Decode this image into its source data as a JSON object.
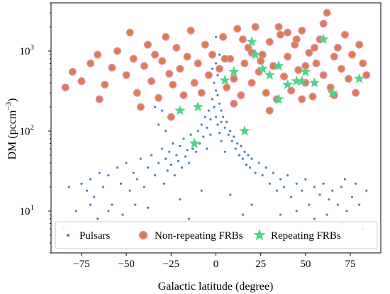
{
  "chart_data": {
    "type": "scatter",
    "xlabel": "Galactic latitude (degree)",
    "ylabel": "DM (pccm",
    "ylabel_exponent": "−3",
    "ylabel_close": ")",
    "xlim": [
      -92,
      92
    ],
    "ylim": [
      3,
      4000
    ],
    "yscale": "log",
    "x_ticks": [
      -75,
      -50,
      -25,
      0,
      25,
      50,
      75
    ],
    "x_tick_labels": [
      "−75",
      "−50",
      "−25",
      "0",
      "25",
      "50",
      "75"
    ],
    "y_ticks": [
      10,
      100,
      1000
    ],
    "y_tick_labels": [
      {
        "base": "10",
        "exp": "1"
      },
      {
        "base": "10",
        "exp": "2"
      },
      {
        "base": "10",
        "exp": "3"
      }
    ],
    "legend_position": "bottom",
    "series": [
      {
        "name": "Pulsars",
        "marker": "dot",
        "color": "#4a7fb5",
        "points": [
          [
            -75,
            22
          ],
          [
            -72,
            18
          ],
          [
            -70,
            25
          ],
          [
            -68,
            15
          ],
          [
            -65,
            30
          ],
          [
            -63,
            20
          ],
          [
            -60,
            28
          ],
          [
            -58,
            12
          ],
          [
            -55,
            35
          ],
          [
            -53,
            22
          ],
          [
            -50,
            40
          ],
          [
            -48,
            18
          ],
          [
            -46,
            30
          ],
          [
            -44,
            25
          ],
          [
            -42,
            45
          ],
          [
            -40,
            20
          ],
          [
            -38,
            35
          ],
          [
            -36,
            50
          ],
          [
            -34,
            28
          ],
          [
            -32,
            40
          ],
          [
            -30,
            60
          ],
          [
            -29,
            22
          ],
          [
            -28,
            45
          ],
          [
            -27,
            32
          ],
          [
            -26,
            55
          ],
          [
            -25,
            38
          ],
          [
            -24,
            70
          ],
          [
            -23,
            28
          ],
          [
            -22,
            50
          ],
          [
            -21,
            42
          ],
          [
            -20,
            65
          ],
          [
            -19,
            35
          ],
          [
            -18,
            80
          ],
          [
            -17,
            48
          ],
          [
            -16,
            58
          ],
          [
            -15,
            40
          ],
          [
            -14,
            90
          ],
          [
            -13,
            60
          ],
          [
            -12,
            75
          ],
          [
            -11,
            55
          ],
          [
            -10,
            100
          ],
          [
            -9,
            70
          ],
          [
            -8,
            120
          ],
          [
            -7,
            85
          ],
          [
            -6,
            150
          ],
          [
            -5,
            110
          ],
          [
            -4,
            180
          ],
          [
            -3,
            140
          ],
          [
            -2,
            250
          ],
          [
            -1,
            200
          ],
          [
            0,
            320
          ],
          [
            0,
            150
          ],
          [
            1,
            280
          ],
          [
            1,
            120
          ],
          [
            2,
            220
          ],
          [
            2,
            95
          ],
          [
            3,
            180
          ],
          [
            3,
            130
          ],
          [
            4,
            150
          ],
          [
            5,
            110
          ],
          [
            6,
            130
          ],
          [
            7,
            90
          ],
          [
            8,
            100
          ],
          [
            9,
            75
          ],
          [
            10,
            85
          ],
          [
            11,
            60
          ],
          [
            12,
            70
          ],
          [
            13,
            50
          ],
          [
            14,
            65
          ],
          [
            15,
            45
          ],
          [
            16,
            55
          ],
          [
            17,
            38
          ],
          [
            18,
            50
          ],
          [
            19,
            35
          ],
          [
            20,
            45
          ],
          [
            22,
            30
          ],
          [
            24,
            40
          ],
          [
            26,
            28
          ],
          [
            28,
            35
          ],
          [
            30,
            22
          ],
          [
            32,
            30
          ],
          [
            34,
            18
          ],
          [
            36,
            25
          ],
          [
            38,
            20
          ],
          [
            40,
            28
          ],
          [
            42,
            15
          ],
          [
            45,
            22
          ],
          [
            48,
            18
          ],
          [
            50,
            25
          ],
          [
            52,
            12
          ],
          [
            55,
            20
          ],
          [
            58,
            16
          ],
          [
            60,
            22
          ],
          [
            63,
            14
          ],
          [
            65,
            18
          ],
          [
            68,
            12
          ],
          [
            70,
            20
          ],
          [
            73,
            10
          ],
          [
            76,
            15
          ],
          [
            80,
            12
          ],
          [
            84,
            18
          ],
          [
            -85,
            6
          ],
          [
            -78,
            10
          ],
          [
            -66,
            8
          ],
          [
            -52,
            9
          ],
          [
            -38,
            11
          ],
          [
            -33,
            5
          ],
          [
            -20,
            14
          ],
          [
            -8,
            18
          ],
          [
            8,
            16
          ],
          [
            20,
            12
          ],
          [
            36,
            9
          ],
          [
            55,
            8
          ],
          [
            70,
            7
          ],
          [
            82,
            6
          ],
          [
            -5,
            60
          ],
          [
            5,
            55
          ],
          [
            -3,
            90
          ],
          [
            3,
            75
          ],
          [
            -1,
            400
          ],
          [
            1,
            500
          ],
          [
            0,
            700
          ],
          [
            0,
            1500
          ],
          [
            2,
            900
          ],
          [
            -2,
            600
          ],
          [
            -34,
            200
          ],
          [
            -30,
            180
          ],
          [
            -32,
            120
          ],
          [
            -28,
            100
          ],
          [
            -60,
            10
          ],
          [
            -45,
            12
          ],
          [
            -15,
            8
          ],
          [
            15,
            9
          ],
          [
            45,
            10
          ],
          [
            62,
            9
          ],
          [
            -70,
            12
          ],
          [
            72,
            25
          ],
          [
            78,
            22
          ],
          [
            -82,
            20
          ]
        ]
      },
      {
        "name": "Non-repeating FRBs",
        "marker": "circle",
        "color": "#e07b4a",
        "points": [
          [
            -80,
            550
          ],
          [
            -75,
            420
          ],
          [
            -70,
            700
          ],
          [
            -66,
            900
          ],
          [
            -62,
            380
          ],
          [
            -58,
            620
          ],
          [
            -55,
            1000
          ],
          [
            -50,
            500
          ],
          [
            -48,
            1700
          ],
          [
            -46,
            800
          ],
          [
            -44,
            300
          ],
          [
            -40,
            650
          ],
          [
            -38,
            1200
          ],
          [
            -36,
            420
          ],
          [
            -34,
            900
          ],
          [
            -32,
            260
          ],
          [
            -30,
            750
          ],
          [
            -28,
            1500
          ],
          [
            -26,
            520
          ],
          [
            -24,
            380
          ],
          [
            -22,
            1100
          ],
          [
            -20,
            600
          ],
          [
            -18,
            280
          ],
          [
            -16,
            850
          ],
          [
            -14,
            1800
          ],
          [
            -12,
            400
          ],
          [
            -10,
            700
          ],
          [
            -8,
            300
          ],
          [
            -6,
            1200
          ],
          [
            -4,
            500
          ],
          [
            -2,
            900
          ],
          [
            2,
            600
          ],
          [
            4,
            1500
          ],
          [
            6,
            350
          ],
          [
            8,
            800
          ],
          [
            10,
            450
          ],
          [
            12,
            1900
          ],
          [
            14,
            280
          ],
          [
            16,
            700
          ],
          [
            18,
            1100
          ],
          [
            20,
            400
          ],
          [
            22,
            2000
          ],
          [
            24,
            550
          ],
          [
            26,
            900
          ],
          [
            28,
            300
          ],
          [
            30,
            1300
          ],
          [
            32,
            650
          ],
          [
            34,
            250
          ],
          [
            36,
            1600
          ],
          [
            38,
            480
          ],
          [
            40,
            850
          ],
          [
            42,
            320
          ],
          [
            44,
            1200
          ],
          [
            46,
            580
          ],
          [
            48,
            1800
          ],
          [
            50,
            400
          ],
          [
            52,
            950
          ],
          [
            54,
            270
          ],
          [
            56,
            700
          ],
          [
            58,
            1400
          ],
          [
            60,
            500
          ],
          [
            62,
            3000
          ],
          [
            64,
            350
          ],
          [
            66,
            850
          ],
          [
            68,
            1100
          ],
          [
            70,
            600
          ],
          [
            72,
            1600
          ],
          [
            74,
            450
          ],
          [
            76,
            900
          ],
          [
            78,
            300
          ],
          [
            80,
            1200
          ],
          [
            82,
            700
          ],
          [
            84,
            500
          ],
          [
            -84,
            350
          ],
          [
            -65,
            250
          ],
          [
            -42,
            200
          ],
          [
            -25,
            150
          ],
          [
            10,
            220
          ],
          [
            30,
            180
          ],
          [
            48,
            250
          ],
          [
            66,
            280
          ],
          [
            35,
            2000
          ],
          [
            15,
            1400
          ],
          [
            45,
            1400
          ],
          [
            25,
            750
          ],
          [
            55,
            1100
          ],
          [
            40,
            1700
          ],
          [
            20,
            950
          ],
          [
            5,
            800
          ],
          [
            60,
            2200
          ],
          [
            50,
            650
          ]
        ]
      },
      {
        "name": "Repeating FRBs",
        "marker": "star",
        "color": "#4fd58a",
        "points": [
          [
            -20,
            180
          ],
          [
            -10,
            200
          ],
          [
            5,
            430
          ],
          [
            10,
            550
          ],
          [
            16,
            100
          ],
          [
            20,
            1300
          ],
          [
            26,
            600
          ],
          [
            30,
            500
          ],
          [
            35,
            250
          ],
          [
            40,
            380
          ],
          [
            45,
            420
          ],
          [
            50,
            550
          ],
          [
            55,
            400
          ],
          [
            60,
            1400
          ],
          [
            65,
            300
          ],
          [
            80,
            450
          ],
          [
            -12,
            70
          ],
          [
            22,
            900
          ],
          [
            35,
            650
          ],
          [
            48,
            420
          ]
        ]
      }
    ]
  }
}
